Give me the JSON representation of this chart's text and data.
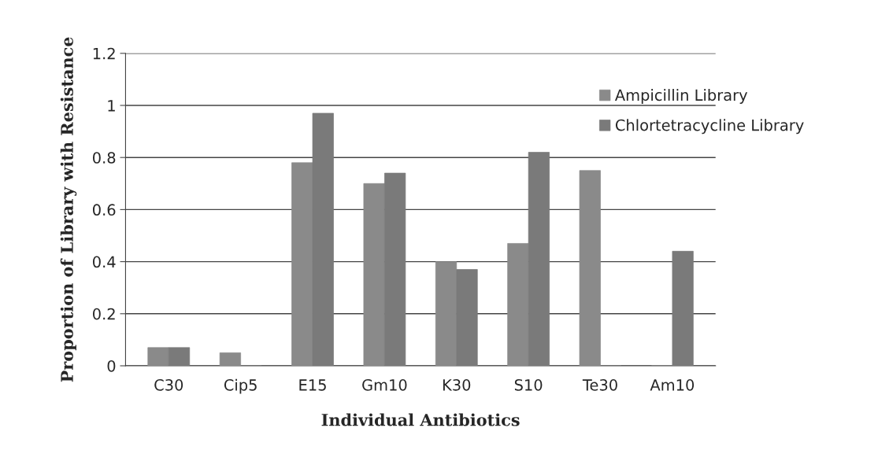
{
  "chart_data": {
    "type": "bar",
    "xlabel": "Individual Antibiotics",
    "ylabel": "Proportion of Library with Resistance",
    "categories": [
      "C30",
      "Cip5",
      "E15",
      "Gm10",
      "K30",
      "S10",
      "Te30",
      "Am10"
    ],
    "series": [
      {
        "name": "Ampicillin Library",
        "color": "#8a8a8a",
        "values": [
          0.07,
          0.05,
          0.78,
          0.7,
          0.4,
          0.47,
          0.75,
          0
        ]
      },
      {
        "name": "Chlortetracycline Library",
        "color": "#7a7a7a",
        "values": [
          0.07,
          0,
          0.97,
          0.74,
          0.37,
          0.82,
          0,
          0.44
        ]
      }
    ],
    "ylim": [
      0,
      1.2
    ],
    "yticks": [
      0,
      0.2,
      0.4,
      0.6,
      0.8,
      1,
      1.2
    ],
    "grid": "y",
    "legend": "top right"
  }
}
